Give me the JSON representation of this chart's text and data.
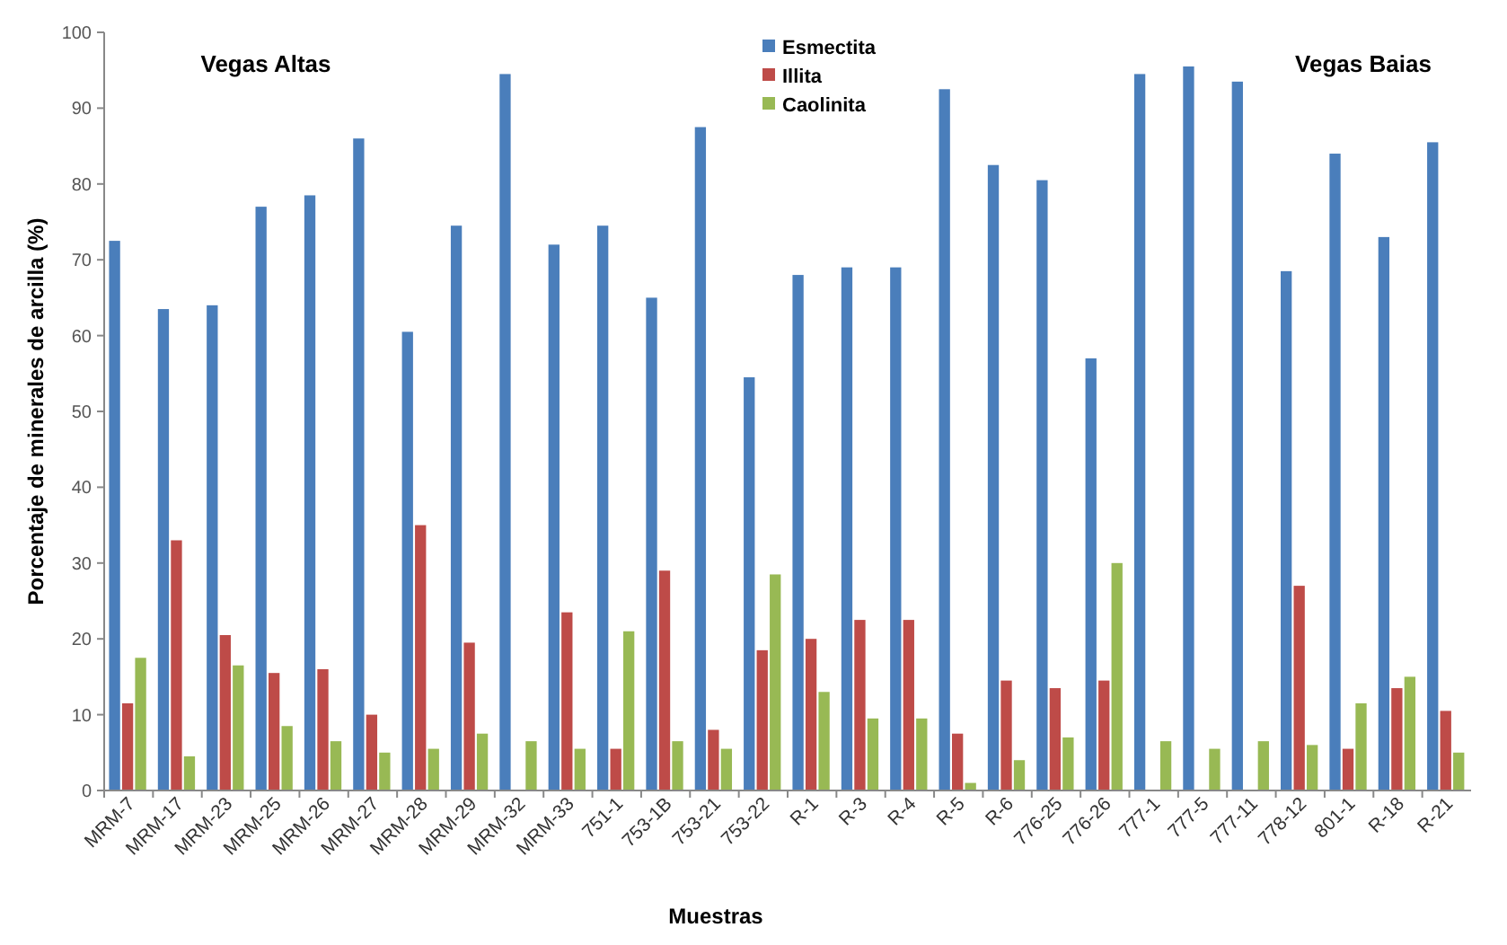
{
  "chart_data": {
    "type": "bar",
    "xlabel": "Muestras",
    "ylabel": "Porcentaje  de minerales de arcilla (%)",
    "categories": [
      "MRM-7",
      "MRM-17",
      "MRM-23",
      "MRM-25",
      "MRM-26",
      "MRM-27",
      "MRM-28",
      "MRM-29",
      "MRM-32",
      "MRM-33",
      "751-1",
      "753-1B",
      "753-21",
      "753-22",
      "R-1",
      "R-3",
      "R-4",
      "R-5",
      "R-6",
      "776-25",
      "776-26",
      "777-1",
      "777-5",
      "777-11",
      "778-12",
      "801-1",
      "R-18",
      "R-21"
    ],
    "series": [
      {
        "name": "Esmectita",
        "color": "#4a7ebb",
        "values": [
          72.5,
          63.5,
          64,
          77,
          78.5,
          86,
          60.5,
          74.5,
          94.5,
          72,
          74.5,
          65,
          87.5,
          54.5,
          68,
          69,
          69,
          92.5,
          82.5,
          80.5,
          57,
          94.5,
          95.5,
          93.5,
          68.5,
          84,
          73,
          85.5
        ]
      },
      {
        "name": "Illita",
        "color": "#be4b48",
        "values": [
          11.5,
          33,
          20.5,
          15.5,
          16,
          10,
          35,
          19.5,
          0,
          23.5,
          5.5,
          29,
          8,
          18.5,
          20,
          22.5,
          22.5,
          7.5,
          14.5,
          13.5,
          14.5,
          0,
          0,
          0,
          27,
          5.5,
          13.5,
          10.5
        ]
      },
      {
        "name": "Caolinita",
        "color": "#98b954",
        "values": [
          17.5,
          4.5,
          16.5,
          8.5,
          6.5,
          5,
          5.5,
          7.5,
          6.5,
          5.5,
          21,
          6.5,
          5.5,
          28.5,
          13,
          9.5,
          9.5,
          1,
          4,
          7,
          30,
          6.5,
          5.5,
          6.5,
          6,
          11.5,
          15,
          5
        ]
      }
    ],
    "ylim": [
      0,
      100
    ],
    "yticks": [
      0,
      10,
      20,
      30,
      40,
      50,
      60,
      70,
      80,
      90,
      100
    ],
    "grid": false,
    "legend": "top",
    "annotations": [
      "Vegas  Altas",
      "Vegas Baias"
    ]
  }
}
